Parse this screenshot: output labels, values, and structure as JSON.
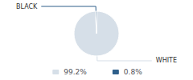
{
  "chart_data": {
    "type": "pie",
    "categories": [
      "WHITE",
      "BLACK"
    ],
    "values": [
      99.2,
      0.8
    ],
    "value_labels": [
      "99.2%",
      "0.8%"
    ],
    "colors": [
      "#d6dfe8",
      "#2e5f8a"
    ],
    "legend": "bottom"
  }
}
